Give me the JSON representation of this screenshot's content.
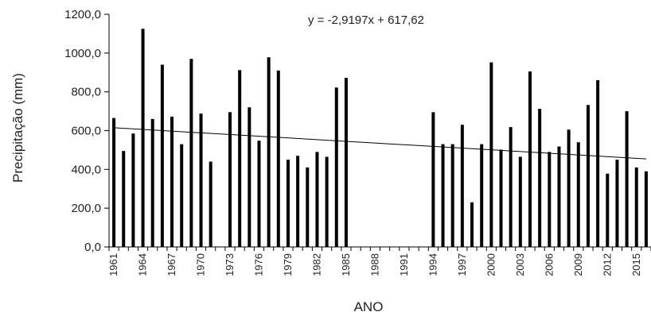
{
  "chart_data": {
    "type": "bar",
    "title": "",
    "xlabel": "ANO",
    "ylabel": "Precipitação (mm)",
    "ylim": [
      0,
      1200
    ],
    "ytick_labels": [
      "0,0",
      "200,0",
      "400,0",
      "600,0",
      "800,0",
      "1000,0",
      "1200,0"
    ],
    "ytick_values": [
      0,
      200,
      400,
      600,
      800,
      1000,
      1200
    ],
    "xtick_labels": [
      "1961",
      "1964",
      "1967",
      "1970",
      "1973",
      "1976",
      "1979",
      "1982",
      "1985",
      "1988",
      "1991",
      "1994",
      "1997",
      "2000",
      "2003",
      "2006",
      "2009",
      "2012",
      "2015"
    ],
    "grid": false,
    "legend": "none",
    "bar_color": "#000000",
    "trendline": {
      "equation_label": "y = -2,9197x + 617,62",
      "slope": -2.9197,
      "intercept": 617.62,
      "color": "#000000"
    },
    "categories": [
      "1961",
      "1962",
      "1963",
      "1964",
      "1965",
      "1966",
      "1967",
      "1968",
      "1969",
      "1970",
      "1971",
      "1972",
      "1973",
      "1974",
      "1975",
      "1976",
      "1977",
      "1978",
      "1979",
      "1980",
      "1981",
      "1982",
      "1983",
      "1984",
      "1985",
      "1986",
      "1987",
      "1988",
      "1989",
      "1990",
      "1991",
      "1992",
      "1993",
      "1994",
      "1995",
      "1996",
      "1997",
      "1998",
      "1999",
      "2000",
      "2001",
      "2002",
      "2003",
      "2004",
      "2005",
      "2006",
      "2007",
      "2008",
      "2009",
      "2010",
      "2011",
      "2012",
      "2013",
      "2014",
      "2015",
      "2016"
    ],
    "values": [
      665,
      495,
      585,
      1125,
      660,
      940,
      672,
      530,
      970,
      688,
      440,
      null,
      695,
      912,
      720,
      548,
      978,
      910,
      450,
      470,
      410,
      490,
      465,
      822,
      872,
      null,
      null,
      null,
      null,
      null,
      null,
      null,
      null,
      695,
      530,
      530,
      630,
      230,
      530,
      952,
      502,
      618,
      465,
      905,
      712,
      490,
      518,
      605,
      540,
      732,
      860,
      378,
      450,
      700,
      410,
      390
    ]
  }
}
